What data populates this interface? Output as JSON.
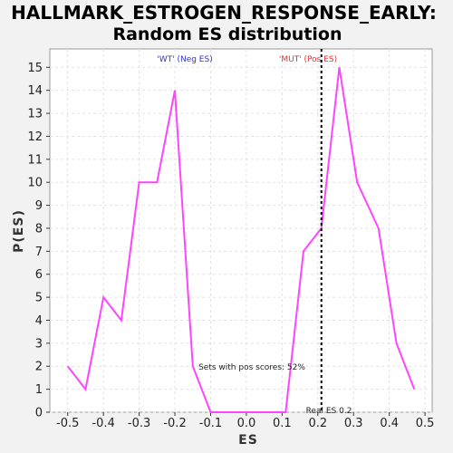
{
  "chart_data": {
    "type": "line",
    "title": "HALLMARK_ESTROGEN_RESPONSE_EARLY:",
    "subtitle": "Random ES distribution",
    "xlabel": "ES",
    "ylabel": "P(ES)",
    "xlim": [
      -0.55,
      0.52
    ],
    "ylim": [
      0,
      15.8
    ],
    "xticks": [
      -0.5,
      -0.4,
      -0.3,
      -0.2,
      -0.1,
      0.0,
      0.1,
      0.2,
      0.3,
      0.4,
      0.5
    ],
    "xtick_labels": [
      "-0.5",
      "-0.4",
      "-0.3",
      "-0.2",
      "-0.1",
      "0.0",
      "0.1",
      "0.2",
      "0.3",
      "0.4",
      "0.5"
    ],
    "yticks": [
      0,
      1,
      2,
      3,
      4,
      5,
      6,
      7,
      8,
      9,
      10,
      11,
      12,
      13,
      14,
      15
    ],
    "grid": true,
    "series": [
      {
        "color": "#ff44ff",
        "x": [
          -0.5,
          -0.45,
          -0.4,
          -0.35,
          -0.3,
          -0.25,
          -0.2,
          -0.15,
          -0.1,
          -0.05,
          0.0,
          0.05,
          0.11,
          0.16,
          0.21,
          0.26,
          0.31,
          0.37,
          0.42,
          0.47
        ],
        "y": [
          2,
          1,
          5,
          4,
          10,
          10,
          14,
          2,
          0,
          0,
          0,
          0,
          0,
          7,
          8,
          15,
          10,
          8,
          3,
          1
        ]
      }
    ],
    "vline": {
      "x": 0.21,
      "style": "dotted",
      "color": "#000000"
    },
    "annotations": {
      "wt_label": "'WT' (Neg ES)",
      "wt_color": "#3333cc",
      "mut_label": "'MUT' (Pos ES)",
      "mut_color": "#dd3333",
      "pos_scores": "Sets with pos scores: 52%",
      "real_es": "Real ES 0.2"
    }
  }
}
